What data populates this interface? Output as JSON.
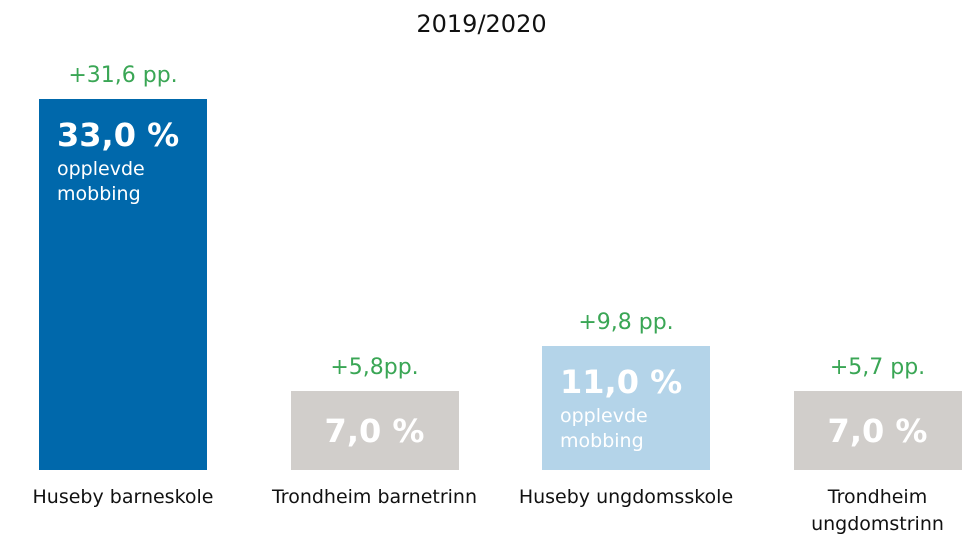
{
  "chart_data": {
    "type": "bar",
    "title": "2019/2020",
    "categories": [
      "Huseby barneskole",
      "Trondheim barnetrinn",
      "Huseby ungdomsskole",
      "Trondheim ungdomstrinn"
    ],
    "values": [
      33.0,
      7.0,
      11.0,
      7.0
    ],
    "value_labels": [
      "33,0 %",
      "7,0 %",
      "11,0 %",
      "7,0 %"
    ],
    "bar_notes": [
      "opplevde mobbing",
      null,
      "opplevde mobbing",
      null
    ],
    "annotations": [
      "+31,6 pp.",
      "+5,8pp.",
      "+9,8 pp.",
      "+5,7 pp."
    ],
    "colors": [
      "#0068ab",
      "#d1cecb",
      "#b4d4e9",
      "#d1cecb"
    ],
    "annotation_color": "#3aa655",
    "ylim": [
      0,
      33
    ]
  }
}
